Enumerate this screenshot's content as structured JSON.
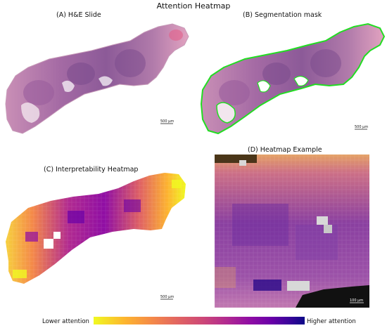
{
  "figure": {
    "title": "Attention Heatmap",
    "panels": [
      {
        "label": "(A) H&E Slide",
        "scale_bar": "500 µm"
      },
      {
        "label": "(B) Segmentation mask",
        "scale_bar": "500 µm",
        "mask_color": "#22dd22"
      },
      {
        "label": "(C) Interpretability Heatmap",
        "scale_bar": "500 µm"
      },
      {
        "label": "(D) Heatmap Example",
        "scale_bar": "100 µm"
      }
    ],
    "colorbar": {
      "low_label": "Lower attention",
      "high_label": "Higher attention",
      "colormap": "plasma (reversed)",
      "colors": [
        "#f0f921",
        "#fdb42f",
        "#f48849",
        "#e16462",
        "#cc4778",
        "#b12a90",
        "#8f0da4",
        "#6a00a8",
        "#3e049c",
        "#0d0887"
      ]
    },
    "tissue_colors": {
      "pink": "#d89cc0",
      "purple": "#7a4a8c",
      "pale": "#e8c8dc"
    }
  }
}
